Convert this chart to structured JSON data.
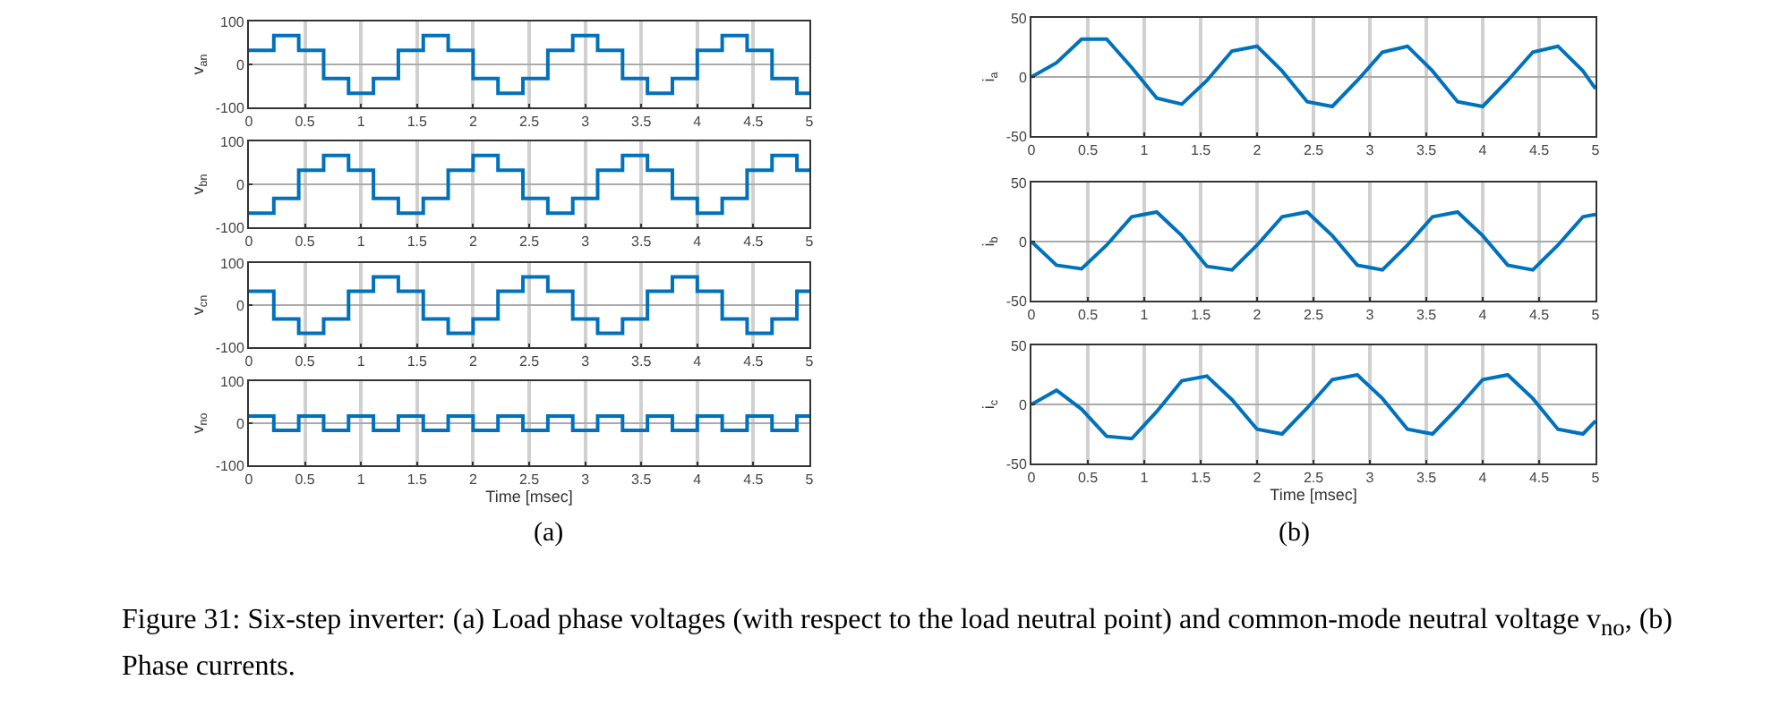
{
  "chart_data": [
    {
      "type": "step",
      "x": [
        0,
        0.2222,
        0.4444,
        0.6667,
        0.8889,
        1.1111,
        1.3333,
        1.5556,
        1.7778,
        2,
        2.2222,
        2.4444,
        2.6667,
        2.8889,
        3.1111,
        3.3333,
        3.5556,
        3.7778,
        4,
        4.2222,
        4.4444,
        4.6667,
        4.8889,
        5
      ],
      "series": [
        {
          "color": "#0072bd",
          "values": [
            33,
            67,
            33,
            -33,
            -67,
            -33,
            33,
            67,
            33,
            -33,
            -67,
            -33,
            33,
            67,
            33,
            -33,
            -67,
            -33,
            33,
            67,
            33,
            -33,
            -67,
            -67
          ]
        }
      ],
      "ylabel": "v$_{an}$",
      "xlim": [
        0,
        5
      ],
      "xticks": [
        0,
        0.5,
        1,
        1.5,
        2,
        2.5,
        3,
        3.5,
        4,
        4.5,
        5
      ],
      "ylim": [
        -100,
        100
      ],
      "yticks": [
        -100,
        0,
        100
      ],
      "grid": true
    },
    {
      "type": "step",
      "x": [
        0,
        0.2222,
        0.4444,
        0.6667,
        0.8889,
        1.1111,
        1.3333,
        1.5556,
        1.7778,
        2,
        2.2222,
        2.4444,
        2.6667,
        2.8889,
        3.1111,
        3.3333,
        3.5556,
        3.7778,
        4,
        4.2222,
        4.4444,
        4.6667,
        4.8889,
        5
      ],
      "series": [
        {
          "color": "#0072bd",
          "values": [
            -67,
            -33,
            33,
            67,
            33,
            -33,
            -67,
            -33,
            33,
            67,
            33,
            -33,
            -67,
            -33,
            33,
            67,
            33,
            -33,
            -67,
            -33,
            33,
            67,
            33,
            33
          ]
        }
      ],
      "ylabel": "v$_{bn}$",
      "xlim": [
        0,
        5
      ],
      "xticks": [
        0,
        0.5,
        1,
        1.5,
        2,
        2.5,
        3,
        3.5,
        4,
        4.5,
        5
      ],
      "ylim": [
        -100,
        100
      ],
      "yticks": [
        -100,
        0,
        100
      ],
      "grid": true
    },
    {
      "type": "step",
      "x": [
        0,
        0.2222,
        0.4444,
        0.6667,
        0.8889,
        1.1111,
        1.3333,
        1.5556,
        1.7778,
        2,
        2.2222,
        2.4444,
        2.6667,
        2.8889,
        3.1111,
        3.3333,
        3.5556,
        3.7778,
        4,
        4.2222,
        4.4444,
        4.6667,
        4.8889,
        5
      ],
      "series": [
        {
          "color": "#0072bd",
          "values": [
            33,
            -33,
            -67,
            -33,
            33,
            67,
            33,
            -33,
            -67,
            -33,
            33,
            67,
            33,
            -33,
            -67,
            -33,
            33,
            67,
            33,
            -33,
            -67,
            -33,
            33,
            33
          ]
        }
      ],
      "ylabel": "v$_{cn}$",
      "xlim": [
        0,
        5
      ],
      "xticks": [
        0,
        0.5,
        1,
        1.5,
        2,
        2.5,
        3,
        3.5,
        4,
        4.5,
        5
      ],
      "ylim": [
        -100,
        100
      ],
      "yticks": [
        -100,
        0,
        100
      ],
      "grid": true
    },
    {
      "type": "step",
      "x": [
        0,
        0.2222,
        0.4444,
        0.6667,
        0.8889,
        1.1111,
        1.3333,
        1.5556,
        1.7778,
        2,
        2.2222,
        2.4444,
        2.6667,
        2.8889,
        3.1111,
        3.3333,
        3.5556,
        3.7778,
        4,
        4.2222,
        4.4444,
        4.6667,
        4.8889,
        5
      ],
      "series": [
        {
          "color": "#0072bd",
          "values": [
            17,
            -17,
            17,
            -17,
            17,
            -17,
            17,
            -17,
            17,
            -17,
            17,
            -17,
            17,
            -17,
            17,
            -17,
            17,
            -17,
            17,
            -17,
            17,
            -17,
            17,
            17
          ]
        }
      ],
      "ylabel": "v$_{no}$",
      "xlabel": "Time [msec]",
      "annotations": [
        "(a)"
      ],
      "xlim": [
        0,
        5
      ],
      "xticks": [
        0,
        0.5,
        1,
        1.5,
        2,
        2.5,
        3,
        3.5,
        4,
        4.5,
        5
      ],
      "ylim": [
        -100,
        100
      ],
      "yticks": [
        -100,
        0,
        100
      ],
      "grid": true
    },
    {
      "type": "line",
      "x": [
        0,
        0.2222,
        0.4444,
        0.6667,
        0.8889,
        1.1111,
        1.3333,
        1.5556,
        1.7778,
        2,
        2.2222,
        2.4444,
        2.6667,
        2.8889,
        3.1111,
        3.3333,
        3.5556,
        3.7778,
        4,
        4.2222,
        4.4444,
        4.6667,
        4.8889,
        5
      ],
      "series": [
        {
          "color": "#0072bd",
          "values": [
            0,
            12,
            32,
            32,
            8,
            -18,
            -23,
            -3,
            22,
            26,
            5,
            -21,
            -25,
            -3,
            21,
            26,
            5,
            -21,
            -25,
            -3,
            21,
            26,
            5,
            -10
          ]
        }
      ],
      "ylabel": "i$_{a}$",
      "xlim": [
        0,
        5
      ],
      "xticks": [
        0,
        0.5,
        1,
        1.5,
        2,
        2.5,
        3,
        3.5,
        4,
        4.5,
        5
      ],
      "ylim": [
        -50,
        50
      ],
      "yticks": [
        -50,
        0,
        50
      ],
      "grid": true
    },
    {
      "type": "line",
      "x": [
        0,
        0.2222,
        0.4444,
        0.6667,
        0.8889,
        1.1111,
        1.3333,
        1.5556,
        1.7778,
        2,
        2.2222,
        2.4444,
        2.6667,
        2.8889,
        3.1111,
        3.3333,
        3.5556,
        3.7778,
        4,
        4.2222,
        4.4444,
        4.6667,
        4.8889,
        5
      ],
      "series": [
        {
          "color": "#0072bd",
          "values": [
            0,
            -20,
            -23,
            -3,
            21,
            25,
            5,
            -21,
            -24,
            -3,
            21,
            25,
            5,
            -20,
            -24,
            -3,
            21,
            25,
            5,
            -20,
            -24,
            -3,
            21,
            23
          ]
        }
      ],
      "ylabel": "i$_{b}$",
      "xlim": [
        0,
        5
      ],
      "xticks": [
        0,
        0.5,
        1,
        1.5,
        2,
        2.5,
        3,
        3.5,
        4,
        4.5,
        5
      ],
      "ylim": [
        -50,
        50
      ],
      "yticks": [
        -50,
        0,
        50
      ],
      "grid": true
    },
    {
      "type": "line",
      "x": [
        0,
        0.2222,
        0.4444,
        0.6667,
        0.8889,
        1.1111,
        1.3333,
        1.5556,
        1.7778,
        2,
        2.2222,
        2.4444,
        2.6667,
        2.8889,
        3.1111,
        3.3333,
        3.5556,
        3.7778,
        4,
        4.2222,
        4.4444,
        4.6667,
        4.8889,
        5
      ],
      "series": [
        {
          "color": "#0072bd",
          "values": [
            0,
            12,
            -4,
            -27,
            -29,
            -6,
            20,
            24,
            4,
            -21,
            -25,
            -3,
            21,
            25,
            5,
            -21,
            -25,
            -3,
            21,
            25,
            5,
            -21,
            -25,
            -14
          ]
        }
      ],
      "ylabel": "i$_{c}$",
      "xlabel": "Time [msec]",
      "annotations": [
        "(b)",
        "Figure 31: Six-step inverter: (a) Load phase voltages (with respect to the load neutral point) and common-mode neutral voltage v$_{no}$, (b) Phase currents."
      ],
      "xlim": [
        0,
        5
      ],
      "xticks": [
        0,
        0.5,
        1,
        1.5,
        2,
        2.5,
        3,
        3.5,
        4,
        4.5,
        5
      ],
      "ylim": [
        -50,
        50
      ],
      "yticks": [
        -50,
        0,
        50
      ],
      "grid": true
    }
  ]
}
